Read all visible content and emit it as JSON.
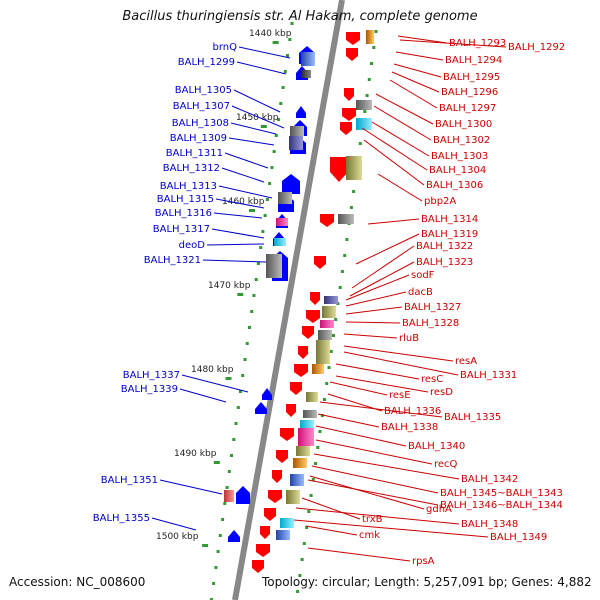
{
  "title": "Bacillus thuringiensis str. Al Hakam, complete genome",
  "footer": {
    "accession": "Accession: NC_008600",
    "topology": "Topology: circular; Length: 5,257,091 bp; Genes: 4,882"
  },
  "colors": {
    "left_label": "#0000cc",
    "left_arrow": "#0000ff",
    "right_label": "#cc0000",
    "right_arrow": "#ff0000",
    "backbone": "#888888",
    "tick": "#339933"
  },
  "ticks": [
    "1440 kbp",
    "1450 kbp",
    "1460 kbp",
    "1470 kbp",
    "1480 kbp",
    "1490 kbp",
    "1500 kbp"
  ],
  "left_labels": [
    "brnQ",
    "BALH_1299",
    "BALH_1305",
    "BALH_1307",
    "BALH_1308",
    "BALH_1309",
    "BALH_1311",
    "BALH_1312",
    "BALH_1313",
    "BALH_1315",
    "BALH_1316",
    "BALH_1317",
    "deoD",
    "BALH_1321",
    "BALH_1337",
    "BALH_1339",
    "BALH_1351",
    "BALH_1355"
  ],
  "right_labels": [
    "BALH_1293",
    "BALH_1292",
    "BALH_1294",
    "BALH_1295",
    "BALH_1296",
    "BALH_1297",
    "BALH_1300",
    "BALH_1302",
    "BALH_1303",
    "BALH_1304",
    "BALH_1306",
    "pbp2A",
    "BALH_1314",
    "BALH_1319",
    "BALH_1322",
    "BALH_1323",
    "sodF",
    "dacB",
    "BALH_1327",
    "BALH_1328",
    "rluB",
    "resA",
    "BALH_1331",
    "resC",
    "resD",
    "resE",
    "BALH_1336",
    "BALH_1335",
    "BALH_1338",
    "BALH_1340",
    "recQ",
    "BALH_1342",
    "BALH_1345~BALH_1343",
    "gdhA",
    "BALH_1346~BALH_1344",
    "trxB",
    "BALH_1348",
    "cmk",
    "BALH_1349",
    "rpsA"
  ]
}
